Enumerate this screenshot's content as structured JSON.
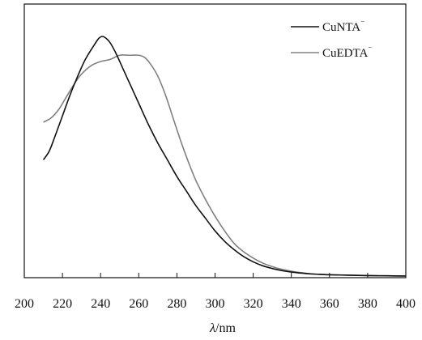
{
  "chart_data": {
    "type": "line",
    "title": "",
    "xlabel": "λ/nm",
    "xlabel_parts": {
      "symbol": "λ",
      "unit": "/nm"
    },
    "ylabel": "",
    "xlim": [
      200,
      400
    ],
    "xticks": [
      "200",
      "220",
      "240",
      "260",
      "280",
      "300",
      "320",
      "340",
      "360",
      "380",
      "400"
    ],
    "y_ticks_shown": false,
    "grid": false,
    "legend_placement": "top-right",
    "series": [
      {
        "name": "CuNTA⁻",
        "name_base": "CuNTA",
        "name_sup": "⁻",
        "color": "#111111",
        "x": [
          210,
          213,
          216,
          220,
          224,
          228,
          232,
          236,
          239,
          241,
          243,
          245,
          248,
          252,
          256,
          260,
          265,
          270,
          275,
          280,
          285,
          290,
          295,
          300,
          305,
          310,
          315,
          320,
          325,
          330,
          335,
          340,
          345,
          350,
          355,
          360,
          370,
          380,
          390,
          400
        ],
        "values": [
          0.56,
          0.6,
          0.67,
          0.77,
          0.87,
          0.96,
          1.04,
          1.1,
          1.14,
          1.15,
          1.14,
          1.12,
          1.07,
          0.99,
          0.91,
          0.83,
          0.73,
          0.64,
          0.56,
          0.48,
          0.41,
          0.34,
          0.28,
          0.22,
          0.17,
          0.13,
          0.097,
          0.072,
          0.053,
          0.04,
          0.03,
          0.023,
          0.018,
          0.014,
          0.012,
          0.01,
          0.008,
          0.006,
          0.005,
          0.004
        ]
      },
      {
        "name": "CuEDTA⁻",
        "name_base": "CuEDTA",
        "name_sup": "⁻",
        "color": "#808080",
        "x": [
          210,
          214,
          218,
          222,
          226,
          230,
          235,
          240,
          245,
          250,
          255,
          260,
          263,
          266,
          270,
          274,
          278,
          282,
          286,
          290,
          295,
          300,
          305,
          310,
          315,
          320,
          325,
          330,
          335,
          340,
          345,
          350,
          355,
          360,
          370,
          380,
          390,
          400
        ],
        "values": [
          0.74,
          0.76,
          0.8,
          0.86,
          0.92,
          0.97,
          1.01,
          1.03,
          1.04,
          1.06,
          1.06,
          1.06,
          1.05,
          1.02,
          0.96,
          0.87,
          0.76,
          0.65,
          0.55,
          0.46,
          0.37,
          0.29,
          0.22,
          0.16,
          0.12,
          0.09,
          0.066,
          0.049,
          0.036,
          0.027,
          0.02,
          0.015,
          0.012,
          0.01,
          0.008,
          0.006,
          0.005,
          0.004
        ]
      }
    ]
  }
}
